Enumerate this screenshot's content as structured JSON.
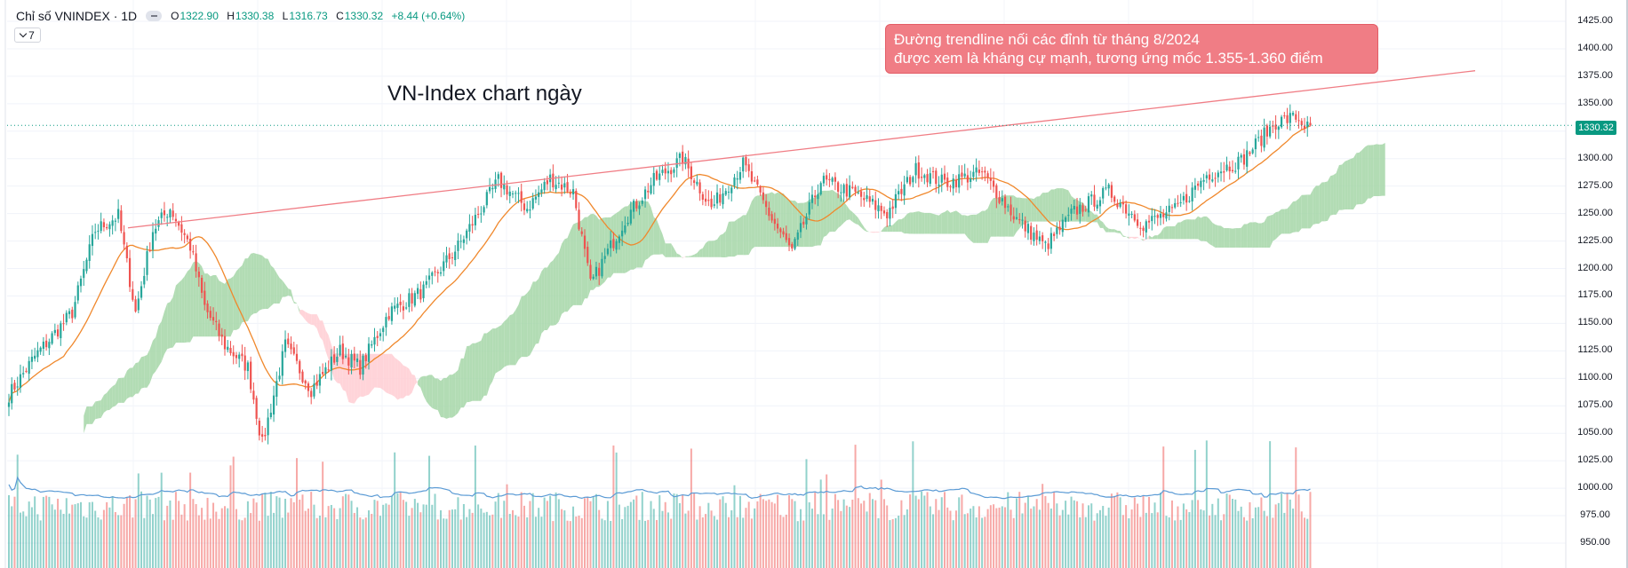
{
  "legend": {
    "symbol_title": "Chỉ số VNINDEX · 1D",
    "open_key": "O",
    "open_val": "1322.90",
    "high_key": "H",
    "high_val": "1330.38",
    "low_key": "L",
    "low_val": "1316.73",
    "close_key": "C",
    "close_val": "1330.32",
    "change": "+8.44 (+0.64%)",
    "indicator_count": "7"
  },
  "annotations": {
    "chart_title": "VN-Index chart ngày",
    "callout_line1": "Đường trendline nối các đỉnh từ tháng 8/2024",
    "callout_line2": "được xem là kháng cự mạnh, tương ứng mốc 1.355-1.360 điểm"
  },
  "price_axis": {
    "ticks": [
      "1425.00",
      "1400.00",
      "1375.00",
      "1350.00",
      "1325.00",
      "1300.00",
      "1275.00",
      "1250.00",
      "1225.00",
      "1200.00",
      "1175.00",
      "1150.00",
      "1125.00",
      "1100.00",
      "1075.00",
      "1050.00",
      "1025.00",
      "1000.00",
      "975.00",
      "950.00"
    ],
    "last_price_label": "1330.32"
  },
  "colors": {
    "up": "#26a69a",
    "down": "#ef5350",
    "trendline": "#f07d85",
    "ma": "#f0882c",
    "volume_ma": "#5b9bd5",
    "cloud_bull": "#a5d6a7",
    "cloud_bear": "#ffcdd2",
    "last_price": "#089981"
  },
  "chart_data": {
    "type": "candlestick",
    "symbol": "VNINDEX",
    "interval": "1D",
    "ylim": [
      940,
      1435
    ],
    "last_close": 1330.32,
    "anchors": [
      [
        0,
        1085
      ],
      [
        9,
        1120
      ],
      [
        14,
        1135
      ],
      [
        22,
        1160
      ],
      [
        30,
        1235
      ],
      [
        38,
        1248
      ],
      [
        44,
        1160
      ],
      [
        50,
        1235
      ],
      [
        56,
        1255
      ],
      [
        63,
        1220
      ],
      [
        68,
        1165
      ],
      [
        75,
        1130
      ],
      [
        83,
        1110
      ],
      [
        88,
        1040
      ],
      [
        96,
        1130
      ],
      [
        105,
        1090
      ],
      [
        115,
        1125
      ],
      [
        122,
        1110
      ],
      [
        132,
        1160
      ],
      [
        144,
        1180
      ],
      [
        156,
        1220
      ],
      [
        170,
        1280
      ],
      [
        180,
        1255
      ],
      [
        188,
        1282
      ],
      [
        196,
        1270
      ],
      [
        202,
        1185
      ],
      [
        214,
        1245
      ],
      [
        224,
        1280
      ],
      [
        234,
        1300
      ],
      [
        244,
        1255
      ],
      [
        255,
        1295
      ],
      [
        265,
        1245
      ],
      [
        272,
        1215
      ],
      [
        282,
        1280
      ],
      [
        294,
        1268
      ],
      [
        305,
        1250
      ],
      [
        315,
        1290
      ],
      [
        325,
        1278
      ],
      [
        338,
        1287
      ],
      [
        350,
        1245
      ],
      [
        360,
        1220
      ],
      [
        370,
        1252
      ],
      [
        382,
        1270
      ],
      [
        394,
        1240
      ],
      [
        405,
        1253
      ],
      [
        416,
        1285
      ],
      [
        428,
        1298
      ],
      [
        440,
        1333
      ],
      [
        447,
        1338
      ],
      [
        452,
        1326
      ]
    ],
    "trendline": {
      "start": {
        "bar": 0,
        "price": 1237
      },
      "end": {
        "bar": 1,
        "price": 1380
      }
    },
    "moving_average": "close-price MA (orange)",
    "ichimoku_cloud": true,
    "volume": {
      "shown": true,
      "ma_line": true
    },
    "annotation_range": "1.355-1.360"
  }
}
